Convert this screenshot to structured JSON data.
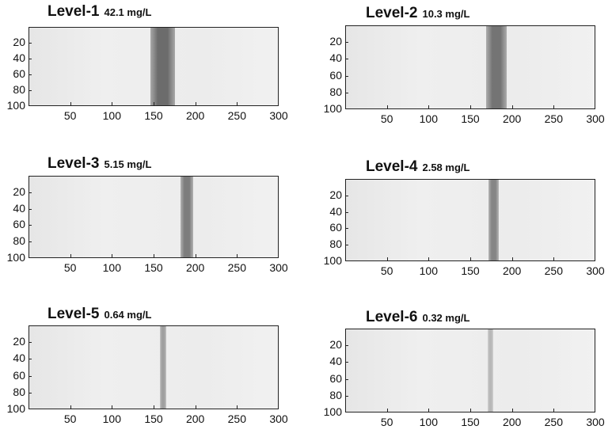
{
  "panels": [
    {
      "title": "Level-1",
      "concentration": "42.1 mg/L",
      "band": {
        "x_start": 145,
        "x_end": 175,
        "darkness": 0.75
      }
    },
    {
      "title": "Level-2",
      "concentration": "10.3 mg/L",
      "band": {
        "x_start": 168,
        "x_end": 193,
        "darkness": 0.7
      }
    },
    {
      "title": "Level-3",
      "concentration": "5.15 mg/L",
      "band": {
        "x_start": 181,
        "x_end": 197,
        "darkness": 0.65
      }
    },
    {
      "title": "Level-4",
      "concentration": "2.58 mg/L",
      "band": {
        "x_start": 171,
        "x_end": 183,
        "darkness": 0.6
      }
    },
    {
      "title": "Level-5",
      "concentration": "0.64 mg/L",
      "band": {
        "x_start": 157,
        "x_end": 164,
        "darkness": 0.45
      }
    },
    {
      "title": "Level-6",
      "concentration": "0.32 mg/L",
      "band": {
        "x_start": 170,
        "x_end": 177,
        "darkness": 0.3
      }
    }
  ],
  "axes": {
    "x_range": [
      0,
      300
    ],
    "y_range": [
      0,
      100
    ],
    "x_ticks": [
      "50",
      "100",
      "150",
      "200",
      "250",
      "300"
    ],
    "y_ticks": [
      "20",
      "40",
      "60",
      "80",
      "100"
    ]
  }
}
